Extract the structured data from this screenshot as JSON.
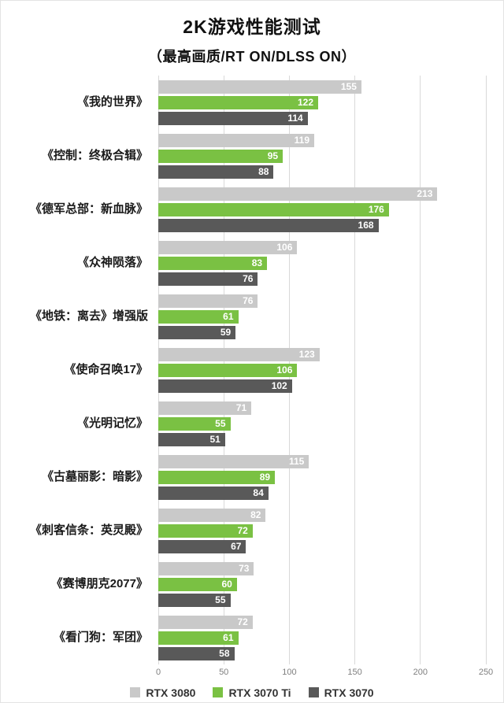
{
  "header": {
    "title": "2K游戏性能测试",
    "subtitle": "（最高画质/RT ON/DLSS ON）"
  },
  "chart_data": {
    "type": "bar",
    "orientation": "horizontal",
    "title": "2K游戏性能测试",
    "subtitle": "（最高画质/RT ON/DLSS ON）",
    "xlabel": "",
    "ylabel": "",
    "xlim": [
      0,
      250
    ],
    "xticks": [
      0,
      50,
      100,
      150,
      200,
      250
    ],
    "grid": true,
    "legend_position": "bottom",
    "value_labels": "inside-end",
    "categories": [
      "《我的世界》",
      "《控制：终极合辑》",
      "《德军总部：新血脉》",
      "《众神陨落》",
      "《地铁：离去》增强版",
      "《使命召唤17》",
      "《光明记忆》",
      "《古墓丽影：暗影》",
      "《刺客信条：英灵殿》",
      "《赛博朋克2077》",
      "《看门狗：军团》"
    ],
    "series": [
      {
        "name": "RTX 3080",
        "color": "#c9c9c9",
        "values": [
          155,
          119,
          213,
          106,
          76,
          123,
          71,
          115,
          82,
          73,
          72
        ]
      },
      {
        "name": "RTX 3070 Ti",
        "color": "#7ac143",
        "values": [
          122,
          95,
          176,
          83,
          61,
          106,
          55,
          89,
          72,
          60,
          61
        ]
      },
      {
        "name": "RTX 3070",
        "color": "#595959",
        "values": [
          114,
          88,
          168,
          76,
          59,
          102,
          51,
          84,
          67,
          55,
          58
        ]
      }
    ]
  }
}
